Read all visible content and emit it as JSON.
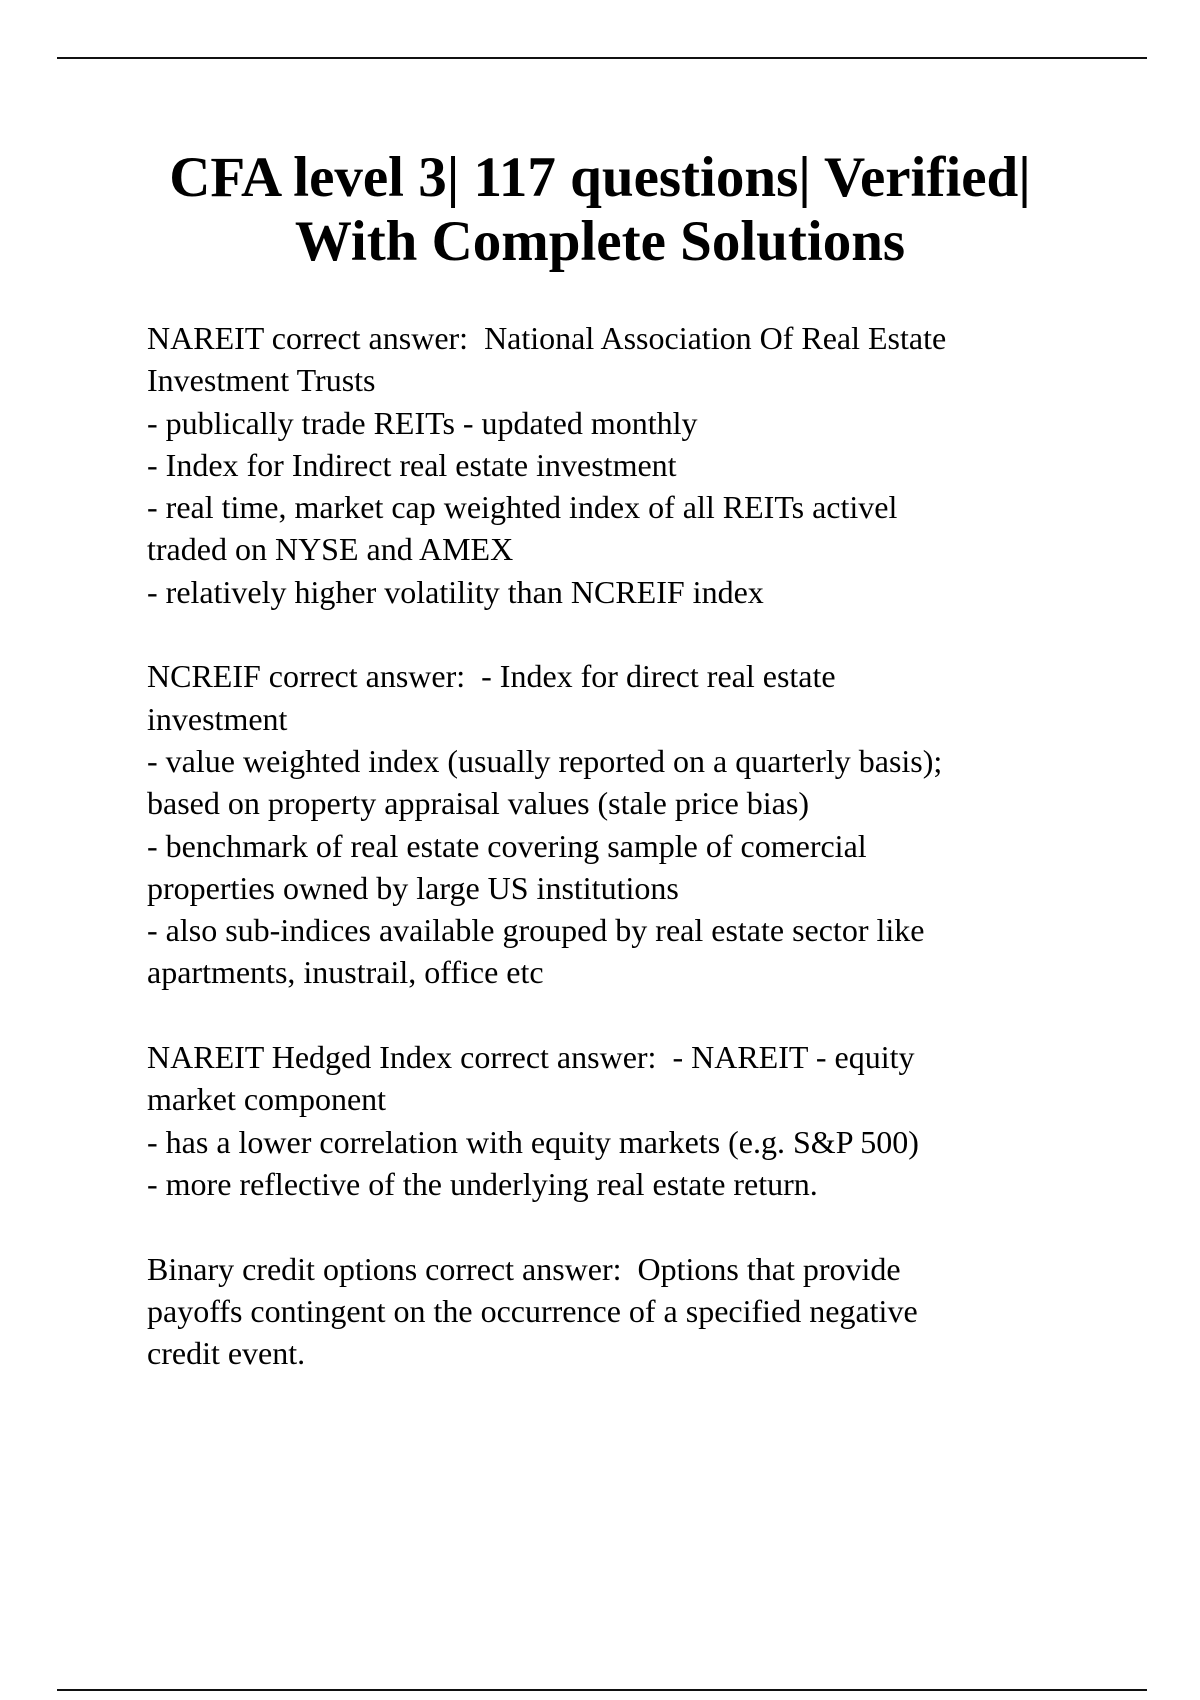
{
  "title": {
    "lines": [
      "CFA level 3| 117 questions| Verified|",
      "With Complete Solutions"
    ]
  },
  "entries": [
    {
      "lines": [
        "NAREIT correct answer:  National Association Of Real Estate",
        "Investment Trusts",
        "- publically trade REITs - updated monthly",
        "- Index for Indirect real estate investment",
        "- real time, market cap weighted index of all REITs activel",
        "traded on NYSE and AMEX",
        "- relatively higher volatility than NCREIF index"
      ]
    },
    {
      "lines": [
        "NCREIF correct answer:  - Index for direct real estate",
        "investment",
        "- value weighted index (usually reported on a quarterly basis);",
        "based on property appraisal values (stale price bias)",
        "- benchmark of real estate covering sample of comercial",
        "properties owned by large US institutions",
        "- also sub-indices available grouped by real estate sector like",
        "apartments, inustrail, office etc"
      ]
    },
    {
      "lines": [
        "NAREIT Hedged Index correct answer:  - NAREIT - equity",
        "market component",
        "- has a lower correlation with equity markets (e.g. S&P 500)",
        "- more reflective of the underlying real estate return."
      ]
    },
    {
      "lines": [
        "Binary credit options correct answer:  Options that provide",
        "payoffs contingent on the occurrence of a specified negative",
        "credit event."
      ]
    }
  ]
}
